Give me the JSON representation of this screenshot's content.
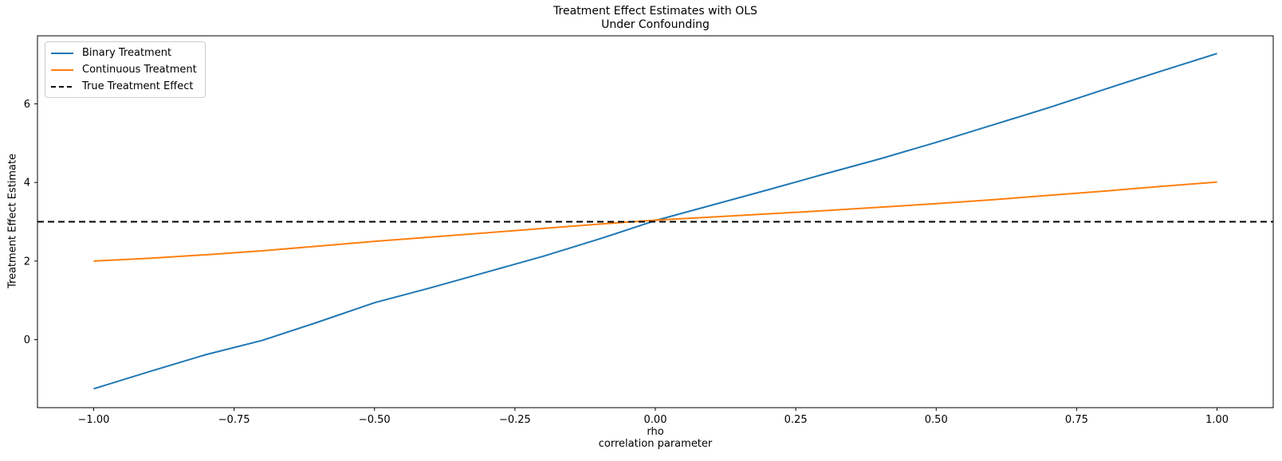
{
  "figure": {
    "title_line1": "Treatment Effect Estimates with OLS",
    "title_line2": "Under Confounding",
    "xlabel_line1": "rho",
    "xlabel_line2": "correlation parameter",
    "ylabel": "Treatment Effect Estimate"
  },
  "chart_data": {
    "type": "line",
    "title": "Treatment Effect Estimates with OLS\nUnder Confounding",
    "xlabel": "rho\ncorrelation parameter",
    "ylabel": "Treatment Effect Estimate",
    "grid": false,
    "legend_position": "upper left",
    "xlim": [
      -1.1,
      1.1
    ],
    "ylim": [
      -1.73,
      7.73
    ],
    "x_ticks": [
      -1.0,
      -0.75,
      -0.5,
      -0.25,
      0.0,
      0.25,
      0.5,
      0.75,
      1.0
    ],
    "x_tick_labels": [
      "−1.00",
      "−0.75",
      "−0.50",
      "−0.25",
      "0.00",
      "0.25",
      "0.50",
      "0.75",
      "1.00"
    ],
    "y_ticks": [
      0,
      2,
      4,
      6
    ],
    "y_tick_labels": [
      "0",
      "2",
      "4",
      "6"
    ],
    "x": [
      -1.0,
      -0.9,
      -0.8,
      -0.7,
      -0.6,
      -0.5,
      -0.4,
      -0.3,
      -0.2,
      -0.1,
      0.0,
      0.1,
      0.2,
      0.3,
      0.4,
      0.5,
      0.6,
      0.7,
      0.8,
      0.9,
      1.0
    ],
    "series": [
      {
        "name": "Binary Treatment",
        "color": "#1f77b4",
        "style": "solid",
        "values": [
          -1.25,
          -0.81,
          -0.38,
          -0.02,
          0.45,
          0.94,
          1.32,
          1.72,
          2.12,
          2.56,
          3.03,
          3.42,
          3.81,
          4.21,
          4.6,
          5.02,
          5.46,
          5.9,
          6.37,
          6.83,
          7.28
        ]
      },
      {
        "name": "Continuous Treatment",
        "color": "#ff7f0e",
        "style": "solid",
        "values": [
          2.0,
          2.07,
          2.16,
          2.26,
          2.38,
          2.5,
          2.61,
          2.72,
          2.83,
          2.94,
          3.04,
          3.12,
          3.2,
          3.28,
          3.37,
          3.46,
          3.56,
          3.67,
          3.78,
          3.9,
          4.01
        ]
      },
      {
        "name": "True Treatment Effect",
        "color": "#000000",
        "style": "dashed",
        "constant": 3.0
      }
    ],
    "true_treatment_effect": 3.0
  }
}
